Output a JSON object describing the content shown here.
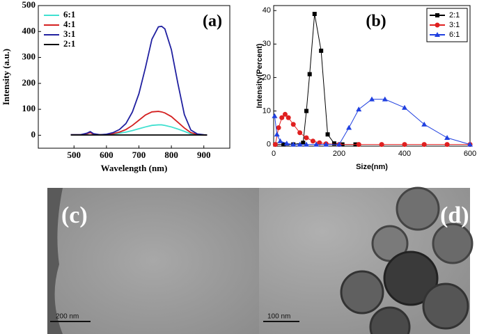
{
  "chart_data": [
    {
      "type": "line",
      "annotation": "(a)",
      "x_label": "Wavelength (nm)",
      "y_label": "Intensity (a.u.)",
      "x": [
        490,
        520,
        540,
        550,
        560,
        580,
        600,
        620,
        640,
        660,
        680,
        700,
        720,
        740,
        760,
        770,
        780,
        800,
        820,
        840,
        860,
        880,
        900,
        910
      ],
      "series": [
        {
          "name": "6:1",
          "color": "#40e0d0",
          "values": [
            2,
            2,
            5,
            12,
            4,
            2,
            2,
            4,
            8,
            12,
            18,
            25,
            32,
            38,
            40,
            40,
            38,
            32,
            24,
            15,
            5,
            2,
            1,
            1
          ]
        },
        {
          "name": "4:1",
          "color": "#d42020",
          "values": [
            2,
            2,
            6,
            10,
            4,
            2,
            3,
            6,
            12,
            22,
            38,
            58,
            78,
            90,
            92,
            90,
            86,
            72,
            50,
            28,
            10,
            3,
            1,
            1
          ]
        },
        {
          "name": "3:1",
          "color": "#2020a0",
          "values": [
            2,
            2,
            8,
            14,
            6,
            2,
            4,
            10,
            22,
            45,
            90,
            160,
            260,
            370,
            418,
            420,
            410,
            330,
            200,
            80,
            20,
            5,
            2,
            1
          ]
        },
        {
          "name": "2:1",
          "color": "#000000",
          "values": [
            1,
            1,
            1,
            1,
            1,
            1,
            1,
            1,
            1,
            1,
            1,
            1,
            1,
            1,
            1,
            1,
            1,
            1,
            1,
            1,
            1,
            1,
            1,
            1
          ]
        }
      ],
      "xlim": [
        390,
        980
      ],
      "xticks": [
        500,
        600,
        700,
        800,
        900
      ],
      "ylim": [
        -50,
        500
      ],
      "yticks": [
        0,
        100,
        200,
        300,
        400,
        500
      ],
      "legend": "upper left",
      "legend_frame": false
    },
    {
      "type": "line",
      "annotation": "(b)",
      "x_label": "Size(nm)",
      "y_label": "Intensity(Percent)",
      "series": [
        {
          "name": "2:1",
          "color": "#000000",
          "marker": "square",
          "x": [
            5,
            30,
            60,
            90,
            100,
            110,
            125,
            145,
            165,
            185,
            210,
            250
          ],
          "values": [
            0,
            0,
            0,
            0.5,
            10,
            21,
            39,
            28,
            3,
            0.3,
            0,
            0
          ]
        },
        {
          "name": "3:1",
          "color": "#e02020",
          "marker": "circle",
          "x": [
            5,
            15,
            25,
            35,
            45,
            60,
            80,
            100,
            120,
            140,
            160,
            200,
            260,
            330,
            400,
            460,
            530,
            600
          ],
          "values": [
            0,
            5,
            8,
            9,
            8,
            6,
            3.5,
            2,
            1,
            0.5,
            0.2,
            0,
            0,
            0,
            0,
            0,
            0,
            0
          ]
        },
        {
          "name": "6:1",
          "color": "#2040e0",
          "marker": "triangle",
          "x": [
            3,
            10,
            20,
            40,
            60,
            80,
            100,
            130,
            160,
            200,
            230,
            260,
            300,
            340,
            400,
            460,
            530,
            600
          ],
          "values": [
            8.5,
            3,
            1,
            0.3,
            0,
            0,
            0,
            0,
            0,
            0,
            5,
            10.5,
            13.5,
            13.5,
            11,
            6,
            2,
            0
          ]
        }
      ],
      "xlim": [
        0,
        600
      ],
      "xticks": [
        0,
        200,
        400,
        600
      ],
      "ylim": [
        -0.5,
        41.5
      ],
      "yticks": [
        0,
        10,
        20,
        30,
        40
      ],
      "legend": "upper right",
      "legend_frame": true
    }
  ],
  "images": [
    {
      "label": "(c)",
      "scale_bar": "200 nm"
    },
    {
      "label": "(d)",
      "scale_bar": "100 nm"
    }
  ]
}
